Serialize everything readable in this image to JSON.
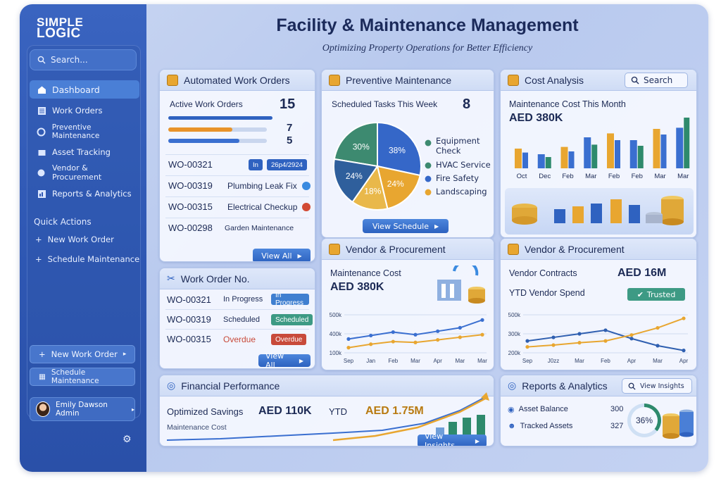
{
  "brand": {
    "line1": "SIMPLE",
    "line2": "LOGIC"
  },
  "search": {
    "placeholder": "Search..."
  },
  "nav": [
    {
      "label": "Dashboard",
      "icon": "home-icon"
    },
    {
      "label": "Work Orders",
      "icon": "list-icon"
    },
    {
      "label": "Preventive Maintenance",
      "icon": "calendar-icon"
    },
    {
      "label": "Asset Tracking",
      "icon": "box-icon"
    },
    {
      "label": "Vendor & Procurement",
      "icon": "truck-icon"
    },
    {
      "label": "Reports & Analytics",
      "icon": "chart-icon"
    }
  ],
  "quick_actions": {
    "title": "Quick Actions",
    "items": [
      "New Work Order",
      "Schedule Maintenance"
    ]
  },
  "sidebar_buttons": {
    "new_work_order": "New Work Order",
    "schedule_maintenance": "Schedule Maintenance"
  },
  "user": {
    "name": "Emily Dawson Admin"
  },
  "header": {
    "title": "Facility & Maintenance Management",
    "subtitle": "Optimizing Property Operations for Better Efficiency"
  },
  "work_orders": {
    "title": "Automated Work Orders",
    "active_label": "Active Work Orders",
    "active_count": "15",
    "bar_counts": [
      "7",
      "5"
    ],
    "rows": [
      {
        "id": "WO-00321",
        "desc": "In",
        "tag": "26p4/2924"
      },
      {
        "id": "WO-00319",
        "desc": "Plumbing Leak Fix"
      },
      {
        "id": "WO-00315",
        "desc": "Electrical Checkup"
      },
      {
        "id": "WO-00298",
        "desc": "Garden Maintenance"
      }
    ],
    "view_all": "View All"
  },
  "wo_number": {
    "title": "Work Order No.",
    "rows": [
      {
        "id": "WO-00321",
        "status": "In Progress",
        "badge": "In Progress",
        "color": "#3f7fd0"
      },
      {
        "id": "WO-00319",
        "status": "Scheduled",
        "badge": "Scheduled",
        "color": "#3d9a84"
      },
      {
        "id": "WO-00315",
        "status": "Overdue",
        "badge": "Overdue",
        "color": "#c84a3a"
      }
    ],
    "view_all": "View All"
  },
  "preventive": {
    "title": "Preventive Maintenance",
    "scheduled_label": "Scheduled Tasks This Week",
    "scheduled_count": "8",
    "legend": [
      "Equipment Check",
      "HVAC Service",
      "Fire Safety",
      "Landscaping"
    ],
    "view_schedule": "View Schedule"
  },
  "cost": {
    "title": "Cost Analysis",
    "search": "Search",
    "label": "Maintenance Cost This Month",
    "value": "AED 380K"
  },
  "vendor1": {
    "title": "Vendor & Procurement",
    "label": "Maintenance Cost",
    "value": "AED 380K"
  },
  "vendor2": {
    "title": "Vendor & Procurement",
    "contracts_label": "Vendor Contracts",
    "contracts_value": "AED 16M",
    "ytd_label": "YTD Vendor Spend",
    "badge": "Trusted"
  },
  "financial": {
    "title": "Financial Performance",
    "savings_label": "Optimized Savings",
    "savings_value": "AED 110K",
    "ytd_label": "YTD",
    "ytd_value": "AED 1.75M",
    "sub_label": "Maintenance Cost",
    "view_insights": "View Insights"
  },
  "reports": {
    "title": "Reports & Analytics",
    "view_insights": "View Insights",
    "rows": [
      {
        "label": "Asset Balance",
        "value": "300"
      },
      {
        "label": "Tracked Assets",
        "value": "327"
      }
    ],
    "gauge": "36%"
  },
  "colors": {
    "accent": "#2f62c0",
    "orange": "#e8a630",
    "teal": "#3d9a84",
    "red": "#c84a3a"
  },
  "chart_data": [
    {
      "type": "pie",
      "title": "",
      "slices": [
        {
          "label": "30%",
          "value": 30,
          "color": "#3d8a70"
        },
        {
          "label": "38%",
          "value": 38,
          "color": "#3567c8"
        },
        {
          "label": "24%",
          "value": 24,
          "color": "#e8a630"
        },
        {
          "label": "18%",
          "value": 18,
          "color": "#e9b84a"
        },
        {
          "label": "24%",
          "value": 24,
          "color": "#2f5f9c"
        }
      ]
    },
    {
      "type": "bar",
      "title": "",
      "categories": [
        "Oct",
        "Dec",
        "Feb",
        "Mar",
        "Feb",
        "Feb",
        "Mar",
        "Mar"
      ],
      "series": [
        {
          "values": [
            35,
            25,
            38,
            55,
            62,
            50,
            70,
            72
          ]
        },
        {
          "values": [
            28,
            20,
            30,
            42,
            50,
            40,
            60,
            90
          ]
        }
      ]
    },
    {
      "type": "line",
      "title": "",
      "x": [
        "Sep",
        "Jan",
        "Feb",
        "Mar",
        "Apr",
        "Mar",
        "Mar"
      ],
      "yticks": [
        "500k",
        "400k",
        "100k"
      ],
      "series": [
        {
          "values": [
            380,
            400,
            420,
            405,
            425,
            445,
            490
          ]
        },
        {
          "values": [
            330,
            350,
            365,
            360,
            375,
            390,
            405
          ]
        }
      ]
    },
    {
      "type": "line",
      "title": "",
      "x": [
        "Sep",
        "J0zz",
        "Mar",
        "Feb",
        "Apr",
        "Mar",
        "Apr"
      ],
      "yticks": [
        "500k",
        "300k",
        "200k"
      ],
      "series": [
        {
          "values": [
            200,
            230,
            260,
            290,
            220,
            160,
            120
          ]
        },
        {
          "values": [
            150,
            165,
            185,
            200,
            250,
            310,
            390
          ]
        }
      ]
    }
  ]
}
